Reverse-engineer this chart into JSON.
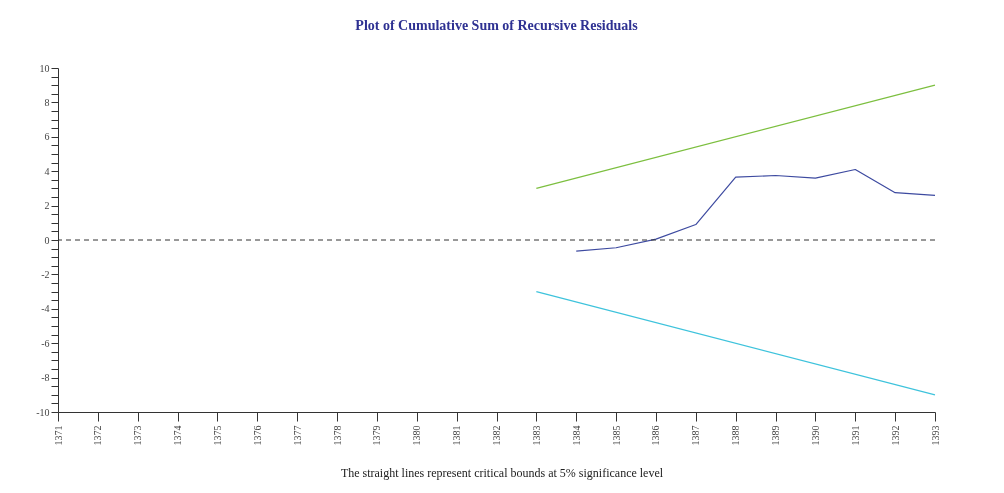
{
  "chart_data": {
    "type": "line",
    "title": "Plot of Cumulative Sum of Recursive Residuals",
    "annotations": [
      "The straight lines represent critical bounds at 5% significance level"
    ],
    "series": [
      {
        "color": "#3d4aa0",
        "x": [
          1384,
          1385,
          1386,
          1387,
          1388,
          1389,
          1390,
          1391,
          1392,
          1393
        ],
        "values": [
          -0.65,
          -0.45,
          0.05,
          0.9,
          3.65,
          3.75,
          3.6,
          4.1,
          2.75,
          2.6
        ]
      },
      {
        "color": "#7cbf3f",
        "x": [
          1383,
          1393
        ],
        "values": [
          3,
          9
        ]
      },
      {
        "color": "#3ec3dc",
        "x": [
          1383,
          1393
        ],
        "values": [
          -3,
          -9
        ]
      }
    ],
    "xlim": [
      1371,
      1393
    ],
    "xticks": [
      1371,
      1372,
      1373,
      1374,
      1375,
      1376,
      1377,
      1378,
      1379,
      1380,
      1381,
      1382,
      1383,
      1384,
      1385,
      1386,
      1387,
      1388,
      1389,
      1390,
      1391,
      1392,
      1393
    ],
    "ylim": [
      -10,
      10
    ],
    "yticks": [
      -10,
      {
        "value": -9.5,
        "label": null
      },
      {
        "value": -9,
        "label": null
      },
      {
        "value": -8.5,
        "label": null
      },
      -8,
      {
        "value": -7.5,
        "label": null
      },
      {
        "value": -7,
        "label": null
      },
      {
        "value": -6.5,
        "label": null
      },
      -6,
      {
        "value": -5.5,
        "label": null
      },
      {
        "value": -5,
        "label": null
      },
      {
        "value": -4.5,
        "label": null
      },
      -4,
      {
        "value": -3.5,
        "label": null
      },
      {
        "value": -3,
        "label": null
      },
      {
        "value": -2.5,
        "label": null
      },
      -2,
      {
        "value": -1.5,
        "label": null
      },
      {
        "value": -1,
        "label": null
      },
      {
        "value": -0.5,
        "label": null
      },
      0,
      {
        "value": 0.5,
        "label": null
      },
      {
        "value": 1,
        "label": null
      },
      {
        "value": 1.5,
        "label": null
      },
      2,
      {
        "value": 2.5,
        "label": null
      },
      {
        "value": 3,
        "label": null
      },
      {
        "value": 3.5,
        "label": null
      },
      4,
      {
        "value": 4.5,
        "label": null
      },
      {
        "value": 5,
        "label": null
      },
      {
        "value": 5.5,
        "label": null
      },
      6,
      {
        "value": 6.5,
        "label": null
      },
      {
        "value": 7,
        "label": null
      },
      {
        "value": 7.5,
        "label": null
      },
      8,
      {
        "value": 8.5,
        "label": null
      },
      {
        "value": 9,
        "label": null
      },
      {
        "value": 9.5,
        "label": null
      },
      10
    ],
    "ref_lines": [
      {
        "axis": "y",
        "value": 0,
        "color": "#333333",
        "line_style": "dashed"
      }
    ],
    "grid": false,
    "legend": false,
    "marker": "none",
    "line_style": "solid"
  }
}
